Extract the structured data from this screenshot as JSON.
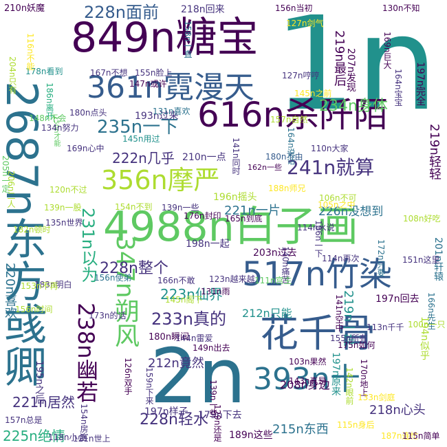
{
  "background": "#ffffff",
  "palette": {
    "dark_purple": "#440154",
    "purple": "#46337e",
    "indigo": "#365c8d",
    "blue": "#2c728e",
    "teal": "#21918c",
    "green_teal": "#28ae80",
    "green": "#5ec962",
    "lime": "#addc30",
    "yellow": "#fde725"
  },
  "words": [
    {
      "text": "1n",
      "color": "#21918c"
    },
    {
      "text": "4988n白子画",
      "color": "#5ec962"
    },
    {
      "text": "2687n东方彧卿",
      "color": "#2c728e"
    },
    {
      "text": "2n",
      "color": "#2c728e"
    },
    {
      "text": "849n糖宝",
      "color": "#440154"
    },
    {
      "text": "616n杀阡陌",
      "color": "#440154"
    },
    {
      "text": "517n竹染",
      "color": "#365c8d"
    },
    {
      "text": "393n十",
      "color": "#2c728e"
    },
    {
      "text": "花千骨",
      "color": "#365c8d"
    },
    {
      "text": "361n霓漫天",
      "color": "#365c8d"
    },
    {
      "text": "356n摩严",
      "color": "#addc30"
    },
    {
      "text": "347n朔风",
      "color": "#5ec962"
    },
    {
      "text": "238n幽若",
      "color": "#440154"
    },
    {
      "text": "241n就算",
      "color": "#46337e"
    },
    {
      "text": "235n一下",
      "color": "#2c728e"
    },
    {
      "text": "234n身体",
      "color": "#5ec962"
    },
    {
      "text": "233n真的",
      "color": "#46337e"
    },
    {
      "text": "231n以为",
      "color": "#28ae80"
    },
    {
      "text": "228n面前",
      "color": "#365c8d"
    },
    {
      "text": "228n整个",
      "color": "#46337e"
    },
    {
      "text": "228n轻水",
      "color": "#46337e"
    },
    {
      "text": "226n没想到",
      "color": "#2c728e"
    },
    {
      "text": "225n绝情",
      "color": "#28ae80"
    },
    {
      "text": "223n仙界",
      "color": "#21918c"
    },
    {
      "text": "222n几乎",
      "color": "#46337e"
    },
    {
      "text": "221n一片",
      "color": "#2c728e"
    },
    {
      "text": "221n居然",
      "color": "#46337e"
    },
    {
      "text": "220n喜欢",
      "color": "#2c728e"
    },
    {
      "text": "219n最后",
      "color": "#440154"
    },
    {
      "text": "219n轻轻",
      "color": "#440154"
    },
    {
      "text": "219n一阵",
      "color": "#21918c"
    },
    {
      "text": "218n心头",
      "color": "#46337e"
    },
    {
      "text": "218n回来",
      "color": "#46337e"
    },
    {
      "text": "215n东西",
      "color": "#2c728e"
    },
    {
      "text": "212n竟然",
      "color": "#46337e"
    },
    {
      "text": "212n只能",
      "color": "#21918c"
    },
    {
      "text": "210n一点",
      "color": "#46337e"
    },
    {
      "text": "210n妖魔",
      "color": "#440154"
    },
    {
      "text": "208n身边",
      "color": "#440154"
    },
    {
      "text": "207n发现",
      "color": "#440154"
    },
    {
      "text": "206n二人",
      "color": "#addc30"
    },
    {
      "text": "205n一定",
      "color": "#5ec962"
    },
    {
      "text": "204n只有",
      "color": "#addc30"
    },
    {
      "text": "203n过去",
      "color": "#440154"
    },
    {
      "text": "201n轩辕",
      "color": "#2c728e"
    },
    {
      "text": "198n一起",
      "color": "#46337e"
    },
    {
      "text": "197n回去",
      "color": "#440154"
    },
    {
      "text": "197n样子",
      "color": "#46337e"
    },
    {
      "text": "197n完全",
      "color": "#440154"
    },
    {
      "text": "197n原来",
      "color": "#21918c"
    },
    {
      "text": "196n摇头",
      "color": "#addc30"
    },
    {
      "text": "195n之后",
      "color": "#46337e"
    },
    {
      "text": "194n似乎",
      "color": "#addc30"
    },
    {
      "text": "193n过来",
      "color": "#46337e"
    },
    {
      "text": "189n这些",
      "color": "#440154"
    },
    {
      "text": "188n师兄",
      "color": "#fde725"
    },
    {
      "text": "187n连忙",
      "color": "#fde725"
    },
    {
      "text": "186n离开",
      "color": "#28ae80"
    },
    {
      "text": "186n一下",
      "color": "#46337e"
    },
    {
      "text": "183n明白",
      "color": "#46337e"
    },
    {
      "text": "182n顿时",
      "color": "#addc30"
    },
    {
      "text": "180n点头",
      "color": "#46337e"
    },
    {
      "text": "180n瞬间",
      "color": "#440154"
    },
    {
      "text": "180n不由",
      "color": "#365c8d"
    },
    {
      "text": "179n下去",
      "color": "#46337e"
    },
    {
      "text": "178n看到",
      "color": "#21918c"
    },
    {
      "text": "176n封印",
      "color": "#440154"
    },
    {
      "text": "175n如何",
      "color": "#440154"
    },
    {
      "text": "173n的话",
      "color": "#46337e"
    },
    {
      "text": "172n只要",
      "color": "#2c728e"
    },
    {
      "text": "170n地上",
      "color": "#440154"
    },
    {
      "text": "169n心中",
      "color": "#46337e"
    },
    {
      "text": "169n巨大",
      "color": "#440154"
    },
    {
      "text": "167n不想",
      "color": "#46337e"
    },
    {
      "text": "166n先生",
      "color": "#2c728e"
    },
    {
      "text": "166n不敢",
      "color": "#46337e"
    },
    {
      "text": "165n到底",
      "color": "#440154"
    },
    {
      "text": "164n说话",
      "color": "#2c728e"
    },
    {
      "text": "164n宝宝",
      "color": "#46337e"
    },
    {
      "text": "162n一些",
      "color": "#440154"
    },
    {
      "text": "159n下来",
      "color": "#46337e"
    },
    {
      "text": "158n一直",
      "color": "#2c728e"
    },
    {
      "text": "157n自然",
      "color": "#addc30"
    },
    {
      "text": "157n总是",
      "color": "#46337e"
    },
    {
      "text": "156n使弟",
      "color": "#2c728e"
    },
    {
      "text": "156n当初",
      "color": "#440154"
    },
    {
      "text": "156n时间",
      "color": "#addc30"
    },
    {
      "text": "155n所有",
      "color": "#46337e"
    },
    {
      "text": "155n脸上",
      "color": "#46337e"
    },
    {
      "text": "154n不到",
      "color": "#addc30"
    },
    {
      "text": "154n房客",
      "color": "#46337e"
    },
    {
      "text": "153n不再",
      "color": "#addc30"
    },
    {
      "text": "151n这里",
      "color": "#46337e"
    },
    {
      "text": "150n才能",
      "color": "#5ec962"
    },
    {
      "text": "149n出去",
      "color": "#440154"
    },
    {
      "text": "148n不会",
      "color": "#5ec962"
    },
    {
      "text": "147n或许",
      "color": "#440154"
    },
    {
      "text": "145n之前",
      "color": "#fde725"
    },
    {
      "text": "145n用过",
      "color": "#21918c"
    },
    {
      "text": "145n阁下",
      "color": "#addc30"
    },
    {
      "text": "144n雷爱",
      "color": "#46337e"
    },
    {
      "text": "143n真是",
      "color": "#440154"
    },
    {
      "text": "142n眼前",
      "color": "#addc30"
    },
    {
      "text": "141n空中",
      "color": "#440154"
    },
    {
      "text": "141n同时",
      "color": "#46337e"
    },
    {
      "text": "140n痛苦",
      "color": "#46337e"
    },
    {
      "text": "139n一些",
      "color": "#46337e"
    },
    {
      "text": "139n一股",
      "color": "#addc30"
    },
    {
      "text": "139n一些",
      "color": "#440154"
    },
    {
      "text": "135n世界",
      "color": "#46337e"
    },
    {
      "text": "134n努力",
      "color": "#46337e"
    },
    {
      "text": "133n剑庭",
      "color": "#fde725"
    },
    {
      "text": "131n喜欢",
      "color": "#2c728e"
    },
    {
      "text": "131n雨",
      "color": "#440154"
    },
    {
      "text": "130n不知",
      "color": "#440154"
    },
    {
      "text": "129n还是",
      "color": "#440154"
    },
    {
      "text": "127n哼哼",
      "color": "#46337e"
    },
    {
      "text": "127n剑气",
      "color": "#fde725"
    },
    {
      "text": "126n双手",
      "color": "#440154"
    },
    {
      "text": "123n越来越",
      "color": "#46337e"
    },
    {
      "text": "121n世上",
      "color": "#46337e"
    },
    {
      "text": "120n不过",
      "color": "#addc30"
    },
    {
      "text": "118n小心",
      "color": "#46337e"
    },
    {
      "text": "116n不能",
      "color": "#fde725"
    },
    {
      "text": "115n简单",
      "color": "#440154"
    },
    {
      "text": "115n身后",
      "color": "#fde725"
    },
    {
      "text": "114n水说",
      "color": "#46337e"
    },
    {
      "text": "114n再次",
      "color": "#46337e"
    },
    {
      "text": "113n千千",
      "color": "#46337e"
    },
    {
      "text": "111n宫主",
      "color": "#5ec962"
    },
    {
      "text": "110n大家",
      "color": "#46337e"
    },
    {
      "text": "108n好吃",
      "color": "#addc30"
    },
    {
      "text": "106n不可",
      "color": "#addc30"
    },
    {
      "text": "105n之中",
      "color": "#fde725"
    },
    {
      "text": "103n果然",
      "color": "#440154"
    },
    {
      "text": "100n一只",
      "color": "#addc30"
    }
  ]
}
